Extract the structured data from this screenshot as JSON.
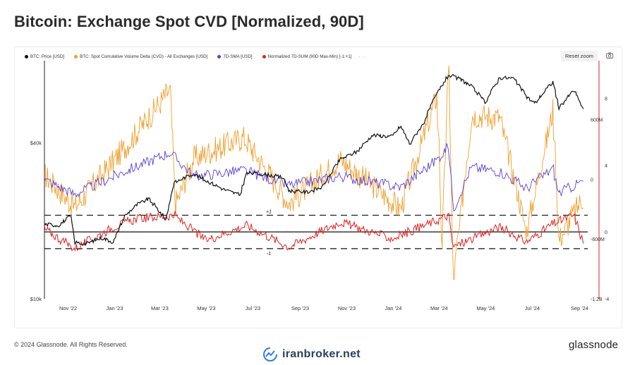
{
  "title": "Bitcoin: Exchange Spot CVD [Normalized, 90D]",
  "toolbar": {
    "reset_zoom": "Reset zoom"
  },
  "legend": [
    {
      "label": "BTC: Price [USD]",
      "color": "#111111"
    },
    {
      "label": "BTC: Spot Cumulative Volume Delta (CVD) - All Exchanges [USD]",
      "color": "#f0a030"
    },
    {
      "label": "7D-SMA [USD]",
      "color": "#5b3fd6"
    },
    {
      "label": "Normalized 7D-SUM (90D Max-Min) [-1:+1]",
      "color": "#e02020"
    }
  ],
  "legend_more": "···",
  "footer": {
    "copyright": "© 2024 Glassnode. All Rights Reserved.",
    "brand": "iranbroker.net",
    "logo": "glassnode"
  },
  "chart_data": {
    "type": "line",
    "x_range": [
      "2022-10-01",
      "2024-09-08"
    ],
    "x_ticks": [
      "Nov '22",
      "Jan '23",
      "Mar '23",
      "May '23",
      "Jul '23",
      "Sep '23",
      "Nov '23",
      "Jan '24",
      "Mar '24",
      "May '24",
      "Jul '24",
      "Sep '24"
    ],
    "y_left": {
      "scale": "log",
      "ticks": [
        "$10k",
        "$40k"
      ],
      "range": [
        10000,
        80000
      ]
    },
    "y_cvd": {
      "ticks": [
        "600M",
        "0",
        "-600M",
        "-1.2B"
      ],
      "range": [
        -1200000000,
        1150000000
      ]
    },
    "y_norm": {
      "ticks": [
        "8",
        "4",
        "0",
        "-4"
      ],
      "range": [
        -4,
        10
      ],
      "reference_labels": [
        "+1",
        "-1"
      ],
      "reference_values": [
        1,
        -1
      ]
    },
    "series": [
      {
        "name": "BTC: Price [USD]",
        "axis": "left",
        "color": "#111111",
        "points": [
          [
            "2022-10-01",
            19400
          ],
          [
            "2022-10-20",
            19200
          ],
          [
            "2022-11-05",
            20900
          ],
          [
            "2022-11-10",
            16500
          ],
          [
            "2022-11-25",
            16300
          ],
          [
            "2022-12-15",
            17200
          ],
          [
            "2022-12-31",
            16550
          ],
          [
            "2023-01-15",
            20900
          ],
          [
            "2023-01-31",
            23100
          ],
          [
            "2023-02-15",
            24300
          ],
          [
            "2023-03-10",
            20100
          ],
          [
            "2023-03-20",
            28000
          ],
          [
            "2023-04-14",
            30400
          ],
          [
            "2023-05-01",
            28600
          ],
          [
            "2023-05-25",
            26400
          ],
          [
            "2023-06-15",
            25100
          ],
          [
            "2023-06-23",
            30600
          ],
          [
            "2023-07-15",
            30300
          ],
          [
            "2023-08-10",
            29400
          ],
          [
            "2023-08-18",
            26100
          ],
          [
            "2023-09-10",
            25800
          ],
          [
            "2023-10-01",
            27000
          ],
          [
            "2023-10-24",
            34500
          ],
          [
            "2023-11-15",
            37000
          ],
          [
            "2023-12-05",
            42800
          ],
          [
            "2023-12-31",
            42300
          ],
          [
            "2024-01-11",
            46400
          ],
          [
            "2024-01-23",
            39500
          ],
          [
            "2024-02-10",
            47500
          ],
          [
            "2024-02-28",
            62000
          ],
          [
            "2024-03-14",
            73100
          ],
          [
            "2024-04-01",
            69700
          ],
          [
            "2024-04-13",
            66000
          ],
          [
            "2024-05-01",
            57200
          ],
          [
            "2024-05-20",
            71400
          ],
          [
            "2024-06-07",
            71000
          ],
          [
            "2024-06-24",
            60300
          ],
          [
            "2024-07-05",
            56700
          ],
          [
            "2024-07-29",
            69000
          ],
          [
            "2024-08-05",
            54000
          ],
          [
            "2024-08-25",
            64000
          ],
          [
            "2024-09-06",
            54000
          ]
        ]
      },
      {
        "name": "BTC: Spot Cumulative Volume Delta (CVD) - All Exchanges [USD]",
        "axis": "cvd",
        "color": "#f0a030",
        "points": [
          [
            "2022-10-01",
            50000000
          ],
          [
            "2022-11-10",
            -280000000
          ],
          [
            "2023-01-15",
            320000000
          ],
          [
            "2023-03-15",
            900000000
          ],
          [
            "2023-03-22",
            -260000000
          ],
          [
            "2023-04-15",
            210000000
          ],
          [
            "2023-06-20",
            420000000
          ],
          [
            "2023-08-18",
            -240000000
          ],
          [
            "2023-10-24",
            200000000
          ],
          [
            "2024-01-11",
            -300000000
          ],
          [
            "2024-02-28",
            850000000
          ],
          [
            "2024-03-05",
            -700000000
          ],
          [
            "2024-03-14",
            1100000000
          ],
          [
            "2024-03-20",
            -1050000000
          ],
          [
            "2024-04-13",
            650000000
          ],
          [
            "2024-05-20",
            620000000
          ],
          [
            "2024-06-24",
            -520000000
          ],
          [
            "2024-07-29",
            700000000
          ],
          [
            "2024-08-05",
            -620000000
          ],
          [
            "2024-09-06",
            -180000000
          ]
        ]
      },
      {
        "name": "7D-SMA [USD]",
        "axis": "cvd",
        "color": "#5b3fd6",
        "points": [
          [
            "2022-10-01",
            0
          ],
          [
            "2022-11-10",
            -150000000
          ],
          [
            "2023-01-15",
            80000000
          ],
          [
            "2023-03-15",
            270000000
          ],
          [
            "2023-04-15",
            30000000
          ],
          [
            "2023-06-20",
            90000000
          ],
          [
            "2023-08-18",
            -60000000
          ],
          [
            "2023-10-24",
            30000000
          ],
          [
            "2024-01-11",
            -80000000
          ],
          [
            "2024-02-28",
            200000000
          ],
          [
            "2024-03-14",
            330000000
          ],
          [
            "2024-03-20",
            -300000000
          ],
          [
            "2024-04-13",
            120000000
          ],
          [
            "2024-05-20",
            80000000
          ],
          [
            "2024-06-24",
            -90000000
          ],
          [
            "2024-07-29",
            110000000
          ],
          [
            "2024-08-05",
            -140000000
          ],
          [
            "2024-09-06",
            -20000000
          ]
        ]
      },
      {
        "name": "Normalized 7D-SUM (90D Max-Min) [-1:+1]",
        "axis": "norm",
        "color": "#e02020",
        "points": [
          [
            "2022-10-01",
            0.2
          ],
          [
            "2022-11-10",
            -1
          ],
          [
            "2022-12-31",
            0.3
          ],
          [
            "2023-01-31",
            0.8
          ],
          [
            "2023-03-20",
            1
          ],
          [
            "2023-05-01",
            -0.5
          ],
          [
            "2023-06-23",
            0.4
          ],
          [
            "2023-08-18",
            -0.9
          ],
          [
            "2023-10-24",
            0.6
          ],
          [
            "2023-12-31",
            -0.4
          ],
          [
            "2024-02-28",
            0.7
          ],
          [
            "2024-03-14",
            1
          ],
          [
            "2024-03-20",
            -0.9
          ],
          [
            "2024-05-20",
            0.3
          ],
          [
            "2024-06-24",
            -0.6
          ],
          [
            "2024-07-29",
            0.5
          ],
          [
            "2024-08-25",
            1
          ],
          [
            "2024-09-06",
            -0.6
          ]
        ]
      }
    ]
  }
}
